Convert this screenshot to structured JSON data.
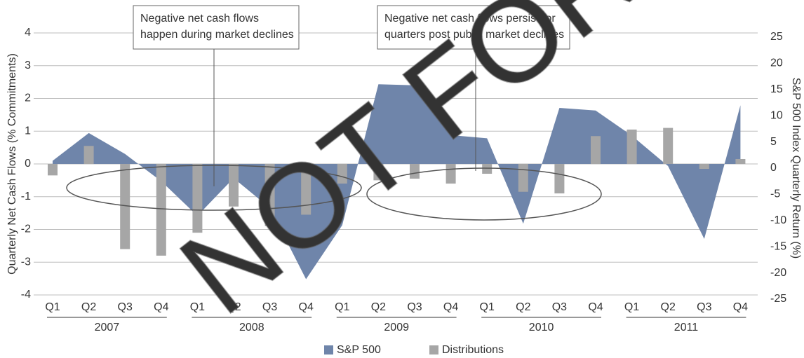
{
  "chart_data": {
    "type": "area-bar",
    "categories": [
      "Q1",
      "Q2",
      "Q3",
      "Q4",
      "Q1",
      "Q2",
      "Q3",
      "Q4",
      "Q1",
      "Q2",
      "Q3",
      "Q4",
      "Q1",
      "Q2",
      "Q3",
      "Q4",
      "Q1",
      "Q2",
      "Q3",
      "Q4"
    ],
    "years": [
      "2007",
      "2008",
      "2009",
      "2010",
      "2011"
    ],
    "y_label": "Quarterly Net Cash Flows (% Commitments)",
    "y2_label": "S&P 500 Index Quarterly Return (%)",
    "ylim": [
      -4,
      4
    ],
    "yticks": [
      -4,
      -3,
      -2,
      -1,
      0,
      1,
      2,
      3,
      4
    ],
    "y2lim": [
      -25,
      25
    ],
    "y2ticks": [
      -25,
      -20,
      -15,
      -10,
      -5,
      0,
      5,
      10,
      15,
      20,
      25
    ],
    "grid": true,
    "legend": "bottom",
    "series": [
      {
        "name": "S&P 500",
        "color": "#6f85aa",
        "axis": "y2",
        "kind": "area",
        "values": [
          0.6,
          5.9,
          1.9,
          -3.3,
          -9.9,
          -2.7,
          -8.4,
          -22,
          -11.7,
          15.2,
          15,
          5.5,
          4.9,
          -11.4,
          10.7,
          10.2,
          5.4,
          -0.4,
          -14.3,
          11.2
        ]
      },
      {
        "name": "Distributions",
        "color": "#a6a6a6",
        "kind": "bar",
        "values": [
          -0.35,
          0.55,
          -2.6,
          -2.8,
          -2.1,
          -1.3,
          -1.9,
          -1.55,
          -0.6,
          -0.5,
          -0.45,
          -0.6,
          -0.3,
          -0.85,
          -0.9,
          0.85,
          1.05,
          1.1,
          -0.15,
          0.15
        ]
      }
    ],
    "annotations": [
      {
        "lines": [
          "Negative net cash flows",
          "happen during market declines"
        ]
      },
      {
        "lines": [
          "Negative net cash flows persist for",
          "quarters post public market declines"
        ]
      }
    ],
    "watermark": "NOT FOR D"
  }
}
